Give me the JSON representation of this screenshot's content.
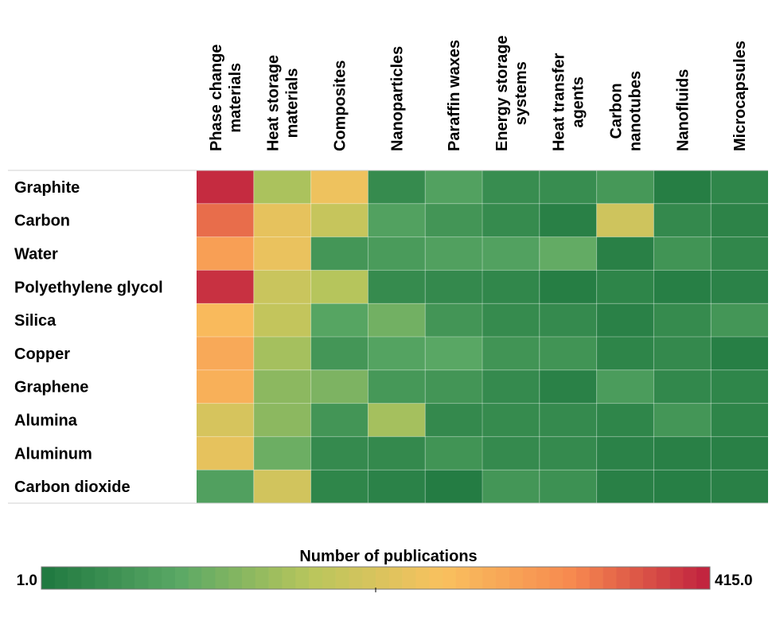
{
  "chart_data": {
    "type": "heatmap",
    "title": "",
    "colorbar_label": "Number of publications",
    "colorbar_min_label": "1.0",
    "colorbar_max_label": "415.0",
    "vmin": 1,
    "vmax": 415,
    "color_stops": [
      "#217a41",
      "#5aa865",
      "#b8c65c",
      "#f9c15e",
      "#f7894f",
      "#c2253f"
    ],
    "columns": [
      [
        "Phase change",
        "materials"
      ],
      [
        "Heat storage",
        "materials"
      ],
      [
        "Composites"
      ],
      [
        "Nanoparticles"
      ],
      [
        "Paraffin waxes"
      ],
      [
        "Energy storage",
        "systems"
      ],
      [
        "Heat transfer",
        "agents"
      ],
      [
        "Carbon",
        "nanotubes"
      ],
      [
        "Nanofluids"
      ],
      [
        "Microcapsules"
      ]
    ],
    "rows": [
      "Graphite",
      "Carbon",
      "Water",
      "Polyethylene glycol",
      "Silica",
      "Copper",
      "Graphene",
      "Alumina",
      "Aluminum",
      "Carbon dioxide"
    ],
    "values": [
      [
        410,
        155,
        235,
        32,
        72,
        35,
        35,
        55,
        8,
        22
      ],
      [
        355,
        225,
        185,
        72,
        50,
        32,
        12,
        195,
        28,
        18
      ],
      [
        300,
        230,
        52,
        60,
        70,
        72,
        92,
        12,
        48,
        24
      ],
      [
        405,
        188,
        165,
        32,
        28,
        24,
        8,
        20,
        10,
        16
      ],
      [
        260,
        180,
        78,
        105,
        50,
        32,
        30,
        14,
        32,
        52
      ],
      [
        285,
        150,
        52,
        75,
        82,
        48,
        48,
        20,
        28,
        10
      ],
      [
        275,
        128,
        115,
        55,
        50,
        30,
        14,
        62,
        26,
        22
      ],
      [
        205,
        128,
        50,
        150,
        28,
        32,
        30,
        22,
        52,
        20
      ],
      [
        225,
        100,
        30,
        28,
        48,
        30,
        30,
        16,
        12,
        12
      ],
      [
        70,
        198,
        22,
        16,
        5,
        52,
        42,
        12,
        10,
        12
      ]
    ]
  }
}
